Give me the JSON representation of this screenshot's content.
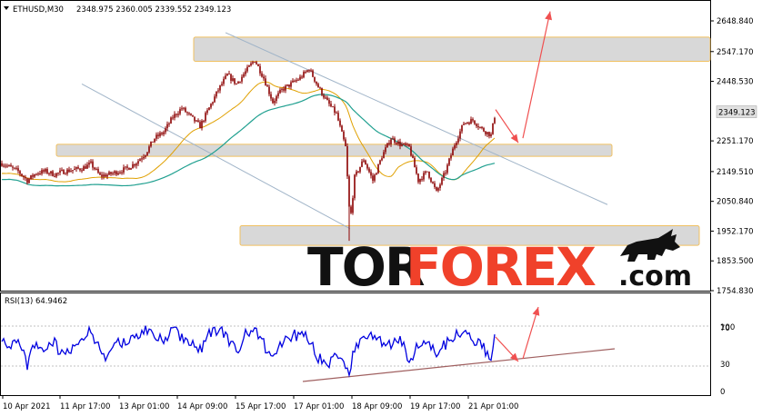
{
  "header": {
    "symbol": "ETHUSD,M30",
    "ohlc": "2348.975 2360.005 2339.552 2349.123",
    "rsi_label": "RSI(13) 64.9462"
  },
  "logo": {
    "part1": "TOR",
    "part2": "FOREX",
    "part3": ".com",
    "bull_icon": "bull-icon"
  },
  "colors": {
    "candle": "#8b0000",
    "ma_fast": "#e0a000",
    "ma_slow": "#20a090",
    "rsi": "#0000e0",
    "arrow": "#f05050",
    "channel": "#a0b4c8",
    "zone_fill": "#d8d8d8",
    "zone_border": "#f0c060",
    "support_line": "#a06060",
    "current_price_bg": "#e0e0e0"
  },
  "chart_data": [
    {
      "type": "candlestick",
      "title": "ETHUSD,M30",
      "current_price": "2349.123",
      "y_ticks": [
        "2648.840",
        "2547.170",
        "2448.530",
        "2251.170",
        "2149.510",
        "2050.840",
        "1952.170",
        "1853.500",
        "1754.830"
      ],
      "y_tick_values": [
        2648.84,
        2547.17,
        2448.53,
        2251.17,
        2149.51,
        2050.84,
        1952.17,
        1853.5,
        1754.83
      ],
      "ylim": [
        1735,
        2700
      ],
      "x_ticks": [
        "10 Apr 2021",
        "11 Apr 17:00",
        "13 Apr 01:00",
        "14 Apr 09:00",
        "15 Apr 17:00",
        "17 Apr 01:00",
        "18 Apr 09:00",
        "19 Apr 17:00",
        "21 Apr 01:00"
      ],
      "price_keypoints": [
        [
          0,
          2180
        ],
        [
          10,
          2165
        ],
        [
          20,
          2150
        ],
        [
          30,
          2120
        ],
        [
          40,
          2145
        ],
        [
          50,
          2150
        ],
        [
          60,
          2140
        ],
        [
          70,
          2150
        ],
        [
          80,
          2155
        ],
        [
          90,
          2160
        ],
        [
          100,
          2175
        ],
        [
          110,
          2135
        ],
        [
          120,
          2140
        ],
        [
          130,
          2150
        ],
        [
          140,
          2160
        ],
        [
          150,
          2180
        ],
        [
          160,
          2210
        ],
        [
          170,
          2260
        ],
        [
          180,
          2280
        ],
        [
          190,
          2330
        ],
        [
          200,
          2360
        ],
        [
          210,
          2330
        ],
        [
          220,
          2300
        ],
        [
          230,
          2360
        ],
        [
          240,
          2420
        ],
        [
          250,
          2470
        ],
        [
          260,
          2440
        ],
        [
          270,
          2480
        ],
        [
          280,
          2520
        ],
        [
          290,
          2460
        ],
        [
          300,
          2380
        ],
        [
          310,
          2420
        ],
        [
          320,
          2440
        ],
        [
          330,
          2460
        ],
        [
          340,
          2490
        ],
        [
          350,
          2430
        ],
        [
          360,
          2380
        ],
        [
          370,
          2340
        ],
        [
          380,
          2230
        ],
        [
          385,
          1980
        ],
        [
          390,
          2130
        ],
        [
          400,
          2190
        ],
        [
          410,
          2120
        ],
        [
          420,
          2200
        ],
        [
          430,
          2260
        ],
        [
          440,
          2240
        ],
        [
          450,
          2230
        ],
        [
          460,
          2120
        ],
        [
          470,
          2150
        ],
        [
          480,
          2080
        ],
        [
          490,
          2150
        ],
        [
          500,
          2240
        ],
        [
          510,
          2310
        ],
        [
          520,
          2320
        ],
        [
          530,
          2290
        ],
        [
          540,
          2270
        ],
        [
          545,
          2349
        ]
      ],
      "channel_lines": [
        [
          [
            90,
            2440
          ],
          [
            385,
            1960
          ]
        ],
        [
          [
            248,
            2610
          ],
          [
            668,
            2040
          ]
        ]
      ],
      "resistance_zones": [
        [
          2515,
          2595
        ],
        [
          2200,
          2240
        ],
        [
          1905,
          1970
        ]
      ],
      "arrows": [
        [
          [
            545,
            2355
          ],
          [
            570,
            2245
          ]
        ],
        [
          [
            575,
            2260
          ],
          [
            605,
            2680
          ]
        ]
      ]
    },
    {
      "type": "line",
      "title": "RSI(13) 64.9462",
      "y_ticks": [
        "100",
        "70",
        "30",
        "0"
      ],
      "y_tick_values": [
        100,
        70,
        30,
        0
      ],
      "ylim": [
        0,
        100
      ],
      "rsi_keypoints": [
        [
          0,
          65
        ],
        [
          10,
          50
        ],
        [
          20,
          55
        ],
        [
          30,
          30
        ],
        [
          40,
          55
        ],
        [
          50,
          48
        ],
        [
          60,
          52
        ],
        [
          70,
          40
        ],
        [
          80,
          50
        ],
        [
          90,
          60
        ],
        [
          100,
          68
        ],
        [
          110,
          45
        ],
        [
          120,
          38
        ],
        [
          130,
          55
        ],
        [
          140,
          50
        ],
        [
          150,
          62
        ],
        [
          160,
          68
        ],
        [
          170,
          58
        ],
        [
          180,
          55
        ],
        [
          190,
          72
        ],
        [
          200,
          60
        ],
        [
          210,
          55
        ],
        [
          220,
          45
        ],
        [
          230,
          62
        ],
        [
          240,
          68
        ],
        [
          250,
          60
        ],
        [
          260,
          45
        ],
        [
          270,
          62
        ],
        [
          280,
          70
        ],
        [
          290,
          52
        ],
        [
          300,
          38
        ],
        [
          310,
          55
        ],
        [
          320,
          60
        ],
        [
          330,
          64
        ],
        [
          340,
          58
        ],
        [
          350,
          38
        ],
        [
          360,
          30
        ],
        [
          370,
          45
        ],
        [
          380,
          22
        ],
        [
          385,
          25
        ],
        [
          390,
          50
        ],
        [
          400,
          55
        ],
        [
          410,
          62
        ],
        [
          420,
          55
        ],
        [
          430,
          48
        ],
        [
          440,
          58
        ],
        [
          450,
          35
        ],
        [
          460,
          50
        ],
        [
          470,
          55
        ],
        [
          480,
          45
        ],
        [
          490,
          52
        ],
        [
          500,
          62
        ],
        [
          510,
          70
        ],
        [
          520,
          58
        ],
        [
          530,
          50
        ],
        [
          540,
          40
        ],
        [
          545,
          65
        ]
      ],
      "support_line": [
        [
          333,
          11
        ],
        [
          676,
          47
        ]
      ],
      "arrows": [
        [
          [
            545,
            60
          ],
          [
            570,
            33
          ]
        ],
        [
          [
            575,
            36
          ],
          [
            592,
            93
          ]
        ]
      ]
    }
  ]
}
